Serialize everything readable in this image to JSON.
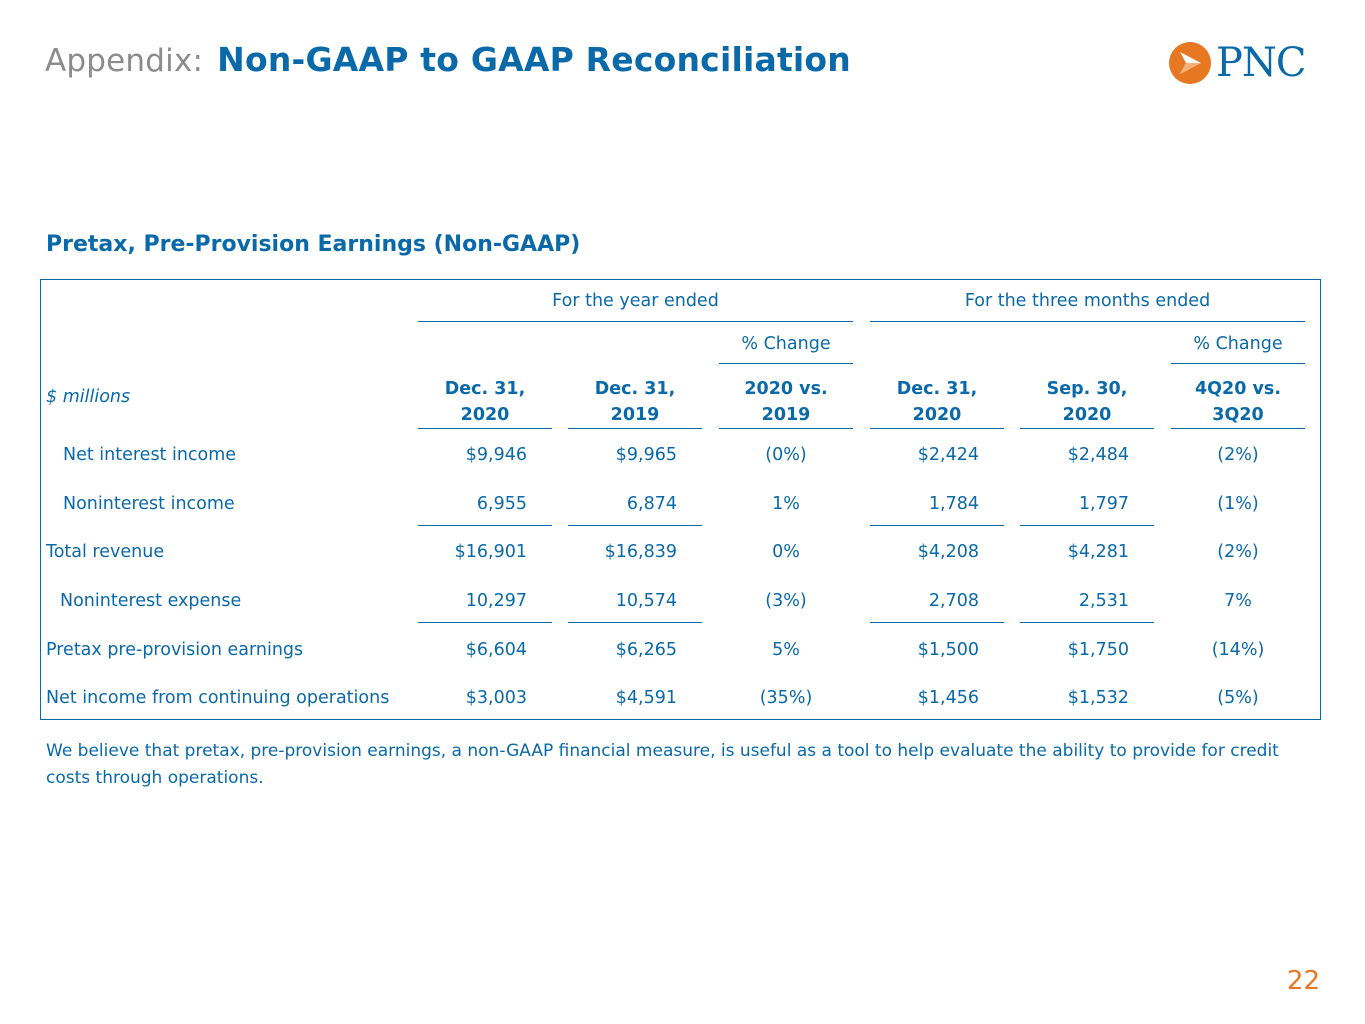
{
  "header": {
    "prefix": "Appendix:",
    "title": "Non-GAAP to GAAP Reconciliation"
  },
  "logo": {
    "text": "PNC",
    "icon": "pnc-logo-icon",
    "colors": {
      "orange": "#e87722",
      "blue": "#0a69a9"
    }
  },
  "section": {
    "title": "Pretax, Pre-Provision Earnings  (Non-GAAP)"
  },
  "table": {
    "group_headers": {
      "year": "For the year ended",
      "three_months": "For the three months ended"
    },
    "pct_change_label": "% Change",
    "units_label": "$ millions",
    "columns": [
      {
        "line1": "Dec. 31,",
        "line2": "2020"
      },
      {
        "line1": "Dec. 31,",
        "line2": "2019"
      },
      {
        "line1": "2020 vs.",
        "line2": "2019"
      },
      {
        "line1": "Dec. 31,",
        "line2": "2020"
      },
      {
        "line1": "Sep. 30,",
        "line2": "2020"
      },
      {
        "line1": "4Q20 vs.",
        "line2": "3Q20"
      }
    ],
    "rows": [
      {
        "label": "Net interest income",
        "values": [
          "$9,946",
          "$9,965",
          "(0%)",
          "$2,424",
          "$2,484",
          "(2%)"
        ]
      },
      {
        "label": "Noninterest income",
        "values": [
          "6,955",
          "6,874",
          "1%",
          "1,784",
          "1,797",
          "(1%)"
        ]
      },
      {
        "label": "Total revenue",
        "values": [
          "$16,901",
          "$16,839",
          "0%",
          "$4,208",
          "$4,281",
          "(2%)"
        ]
      },
      {
        "label": "Noninterest expense",
        "values": [
          "10,297",
          "10,574",
          "(3%)",
          "2,708",
          "2,531",
          "7%"
        ]
      },
      {
        "label": "Pretax pre-provision earnings",
        "values": [
          "$6,604",
          "$6,265",
          "5%",
          "$1,500",
          "$1,750",
          "(14%)"
        ]
      },
      {
        "label": "Net income from continuing operations",
        "values": [
          "$3,003",
          "$4,591",
          "(35%)",
          "$1,456",
          "$1,532",
          "(5%)"
        ]
      }
    ]
  },
  "footnote": "We believe that pretax, pre-provision earnings, a non-GAAP financial measure, is useful as a tool to help evaluate the ability to provide for credit costs through operations.",
  "page_number": "22"
}
